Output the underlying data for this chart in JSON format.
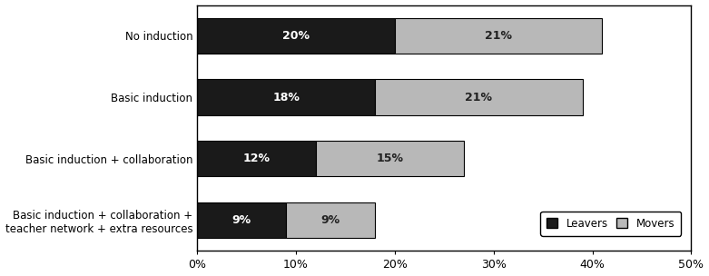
{
  "categories": [
    "No induction",
    "Basic induction",
    "Basic induction + collaboration",
    "Basic induction + collaboration +\nteacher network + extra resources"
  ],
  "leavers": [
    20,
    18,
    12,
    9
  ],
  "movers": [
    21,
    21,
    15,
    9
  ],
  "leavers_color": "#1a1a1a",
  "movers_color": "#b8b8b8",
  "bar_edge_color": "#000000",
  "xlim": [
    0,
    50
  ],
  "xticks": [
    0,
    10,
    20,
    30,
    40,
    50
  ],
  "xtick_labels": [
    "0%",
    "10%",
    "20%",
    "30%",
    "40%",
    "50%"
  ],
  "legend_labels": [
    "Leavers",
    "Movers"
  ],
  "bar_height": 0.58,
  "label_fontsize": 8.5,
  "tick_fontsize": 9,
  "value_fontsize": 9,
  "background_color": "#ffffff"
}
